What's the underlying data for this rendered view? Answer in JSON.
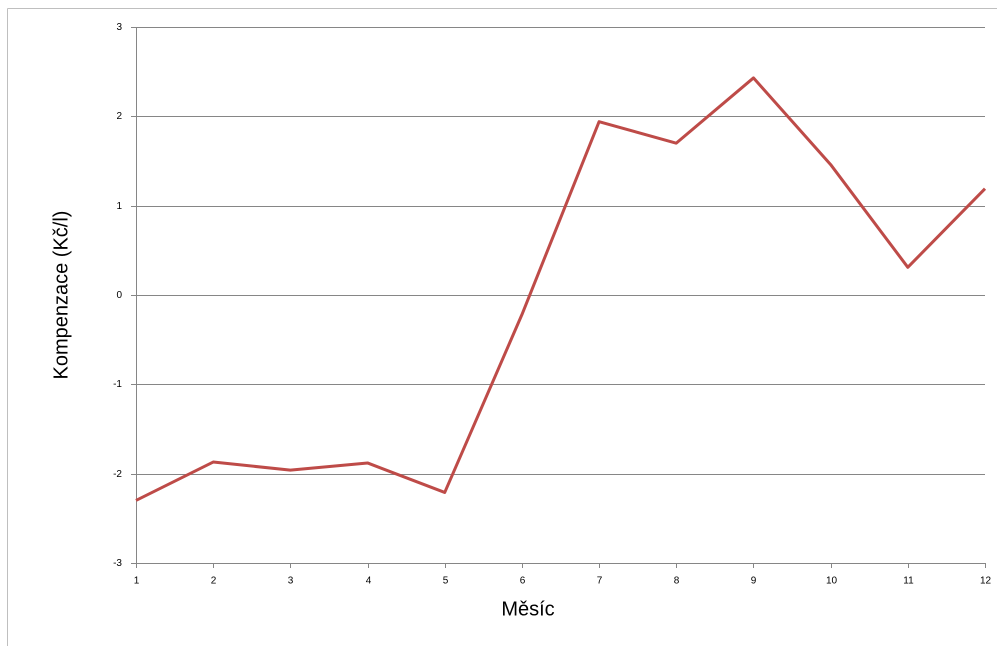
{
  "chart_data": {
    "type": "line",
    "x_label": "Měsíc",
    "y_label": "Kompenzace (Kč/l)",
    "x": [
      1,
      2,
      3,
      4,
      5,
      6,
      7,
      8,
      9,
      10,
      11,
      12
    ],
    "values": [
      -2.3,
      -1.87,
      -1.96,
      -1.88,
      -2.21,
      -0.22,
      1.94,
      1.7,
      2.43,
      1.46,
      0.31,
      1.19
    ],
    "color": "#be4b48",
    "xlim": [
      1,
      12
    ],
    "xticks": [
      1,
      2,
      3,
      4,
      5,
      6,
      7,
      8,
      9,
      10,
      11,
      12
    ],
    "ylim": [
      -3,
      3
    ],
    "yticks": [
      -3,
      -2,
      -1,
      0,
      1,
      2,
      3
    ],
    "grid": true
  }
}
